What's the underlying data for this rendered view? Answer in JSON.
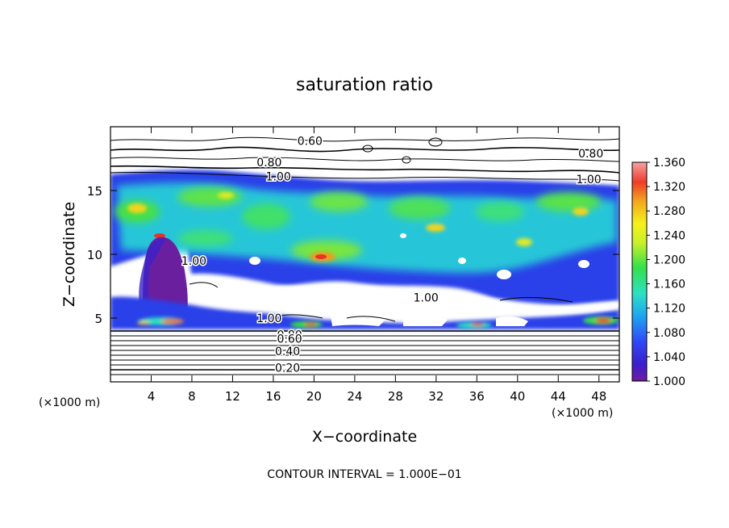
{
  "chart_data": {
    "type": "heatmap",
    "title": "saturation ratio",
    "xlabel": "X−coordinate",
    "ylabel": "Z−coordinate",
    "x_unit_label": "(×1000 m)",
    "y_unit_label": "(×1000 m)",
    "footer": "CONTOUR INTERVAL = 1.000E−01",
    "xlim": [
      0,
      50
    ],
    "ylim": [
      0,
      20
    ],
    "x_ticks": [
      4,
      8,
      12,
      16,
      20,
      24,
      28,
      32,
      36,
      40,
      44,
      48
    ],
    "y_ticks": [
      5,
      10,
      15
    ],
    "colorbar": {
      "min": 1.0,
      "max": 1.36,
      "ticks": [
        "1.000",
        "1.040",
        "1.080",
        "1.120",
        "1.160",
        "1.200",
        "1.240",
        "1.280",
        "1.320",
        "1.360"
      ]
    },
    "contour_labels": [
      {
        "text": "0.60",
        "x": 19.6,
        "z": 18.9
      },
      {
        "text": "0.80",
        "x": 47.2,
        "z": 17.9
      },
      {
        "text": "0.80",
        "x": 15.6,
        "z": 17.2
      },
      {
        "text": "1.00",
        "x": 16.5,
        "z": 16.1
      },
      {
        "text": "1.00",
        "x": 47.0,
        "z": 15.9
      },
      {
        "text": "1.00",
        "x": 8.2,
        "z": 9.5
      },
      {
        "text": "1.00",
        "x": 31.0,
        "z": 6.6
      },
      {
        "text": "1.00",
        "x": 15.6,
        "z": 5.0
      },
      {
        "text": "0.80",
        "x": 17.6,
        "z": 3.7
      },
      {
        "text": "0.60",
        "x": 17.6,
        "z": 3.4
      },
      {
        "text": "0.40",
        "x": 17.4,
        "z": 2.4
      },
      {
        "text": "0.20",
        "x": 17.4,
        "z": 1.1
      }
    ],
    "grid": false,
    "colormap": [
      "#6e1c9e",
      "#3a1fcf",
      "#2f49f5",
      "#1fa6f2",
      "#2ce0c2",
      "#35e14a",
      "#c7f02a",
      "#f6f21a",
      "#f2a81e",
      "#ef3b2a",
      "#f5a3a3"
    ]
  }
}
